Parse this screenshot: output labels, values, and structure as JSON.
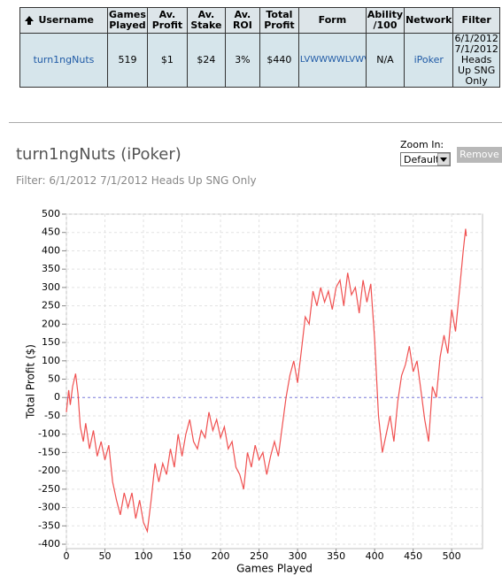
{
  "table": {
    "headers": [
      "Username",
      "Games Played",
      "Av. Profit",
      "Av. Stake",
      "Av. ROI",
      "Total Profit",
      "Form",
      "Ability /100",
      "Network",
      "Filter"
    ],
    "rows": [
      [
        "turn1ngNuts",
        "519",
        "$1",
        "$24",
        "3%",
        "$440",
        "LVWWWWLVWV",
        "N/A",
        "iPoker",
        "6/1/2012 7/1/2012 Heads Up SNG Only"
      ]
    ]
  },
  "zoom": {
    "label": "Zoom In:",
    "option": "Default",
    "button": "Remove"
  },
  "chart_data": {
    "type": "line",
    "title": "turn1ngNuts (iPoker)",
    "subtitle": "Filter: 6/1/2012 7/1/2012 Heads Up SNG Only",
    "x_label": "Games Played",
    "y_label": "Total Profit ($)",
    "color": "#f05050",
    "grid": true,
    "xlim": [
      0,
      540
    ],
    "xticks": [
      0,
      50,
      100,
      150,
      200,
      250,
      300,
      350,
      400,
      450,
      500
    ],
    "ylim": [
      -412,
      500
    ],
    "yticks": [
      -400,
      -350,
      -300,
      -250,
      -200,
      -150,
      -100,
      -50,
      0,
      50,
      100,
      150,
      200,
      250,
      300,
      350,
      400,
      450,
      500
    ],
    "x": [
      0,
      3,
      5,
      8,
      12,
      15,
      18,
      22,
      25,
      30,
      35,
      40,
      45,
      50,
      55,
      60,
      65,
      70,
      75,
      80,
      85,
      90,
      95,
      100,
      105,
      110,
      115,
      120,
      125,
      130,
      135,
      140,
      145,
      150,
      155,
      160,
      165,
      170,
      175,
      180,
      185,
      190,
      195,
      200,
      205,
      210,
      215,
      220,
      225,
      230,
      235,
      240,
      245,
      250,
      255,
      260,
      265,
      270,
      275,
      280,
      285,
      290,
      295,
      300,
      305,
      310,
      315,
      320,
      325,
      330,
      335,
      340,
      345,
      350,
      355,
      360,
      365,
      370,
      375,
      380,
      385,
      390,
      395,
      400,
      405,
      410,
      415,
      420,
      425,
      430,
      435,
      440,
      445,
      450,
      455,
      460,
      465,
      470,
      475,
      480,
      485,
      490,
      495,
      500,
      505,
      510,
      515,
      518,
      519
    ],
    "values": [
      -40,
      20,
      -20,
      30,
      65,
      10,
      -80,
      -120,
      -70,
      -140,
      -90,
      -160,
      -120,
      -170,
      -130,
      -230,
      -280,
      -320,
      -260,
      -300,
      -260,
      -330,
      -280,
      -340,
      -365,
      -280,
      -180,
      -230,
      -180,
      -210,
      -140,
      -190,
      -100,
      -160,
      -100,
      -60,
      -120,
      -140,
      -90,
      -110,
      -40,
      -90,
      -60,
      -110,
      -80,
      -140,
      -120,
      -190,
      -210,
      -250,
      -150,
      -190,
      -130,
      -170,
      -150,
      -210,
      -160,
      -120,
      -160,
      -80,
      0,
      60,
      100,
      40,
      130,
      220,
      200,
      290,
      250,
      300,
      260,
      290,
      240,
      300,
      320,
      250,
      340,
      280,
      300,
      230,
      320,
      260,
      310,
      160,
      -50,
      -150,
      -100,
      -50,
      -120,
      -10,
      60,
      90,
      140,
      70,
      100,
      20,
      -60,
      -120,
      30,
      0,
      110,
      170,
      120,
      240,
      180,
      290,
      400,
      460,
      440
    ]
  }
}
